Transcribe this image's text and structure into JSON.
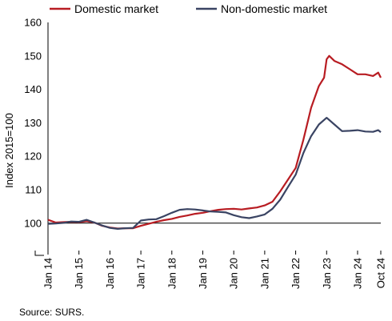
{
  "chart_data": {
    "type": "line",
    "ylabel": "Index 2015=100",
    "source": "Source: SURS.",
    "ylim": [
      95,
      160
    ],
    "yticks": [
      100,
      110,
      120,
      130,
      140,
      150,
      160
    ],
    "yticks_shown": [
      "100",
      "110",
      "120",
      "130",
      "140",
      "150",
      "160"
    ],
    "xticks": [
      "Jan 14",
      "Jan 15",
      "Jan 16",
      "Jan 17",
      "Jan 18",
      "Jan 19",
      "Jan 20",
      "Jan 21",
      "Jan 22",
      "Jan 23",
      "Jan 24",
      "Oct 24"
    ],
    "xtick_months": [
      0,
      12,
      24,
      36,
      48,
      60,
      72,
      84,
      96,
      108,
      120,
      129
    ],
    "x_range_months": [
      0,
      129
    ],
    "reference_line": 100,
    "legend_position": "top",
    "axis_break": true,
    "grid": false,
    "colors": {
      "domestic": "#b81c22",
      "non_domestic": "#3a4463",
      "reference": "#000000"
    },
    "series": [
      {
        "name": "Domestic market",
        "color": "#b81c22",
        "points": [
          [
            0,
            101
          ],
          [
            3,
            100.2
          ],
          [
            6,
            100.3
          ],
          [
            9,
            100.4
          ],
          [
            12,
            100.3
          ],
          [
            15,
            100.6
          ],
          [
            18,
            100.2
          ],
          [
            21,
            99.2
          ],
          [
            24,
            98.7
          ],
          [
            27,
            98.4
          ],
          [
            30,
            98.5
          ],
          [
            33,
            98.5
          ],
          [
            36,
            99.2
          ],
          [
            39,
            99.8
          ],
          [
            42,
            100.4
          ],
          [
            45,
            100.9
          ],
          [
            48,
            101.3
          ],
          [
            51,
            101.9
          ],
          [
            54,
            102.3
          ],
          [
            57,
            102.8
          ],
          [
            60,
            103.1
          ],
          [
            63,
            103.6
          ],
          [
            66,
            104.0
          ],
          [
            69,
            104.2
          ],
          [
            72,
            104.3
          ],
          [
            75,
            104.1
          ],
          [
            78,
            104.4
          ],
          [
            81,
            104.7
          ],
          [
            84,
            105.3
          ],
          [
            87,
            106.4
          ],
          [
            90,
            109.5
          ],
          [
            93,
            113.0
          ],
          [
            96,
            116.5
          ],
          [
            99,
            125.0
          ],
          [
            102,
            134.5
          ],
          [
            105,
            141.0
          ],
          [
            107,
            143.5
          ],
          [
            108,
            149.0
          ],
          [
            109,
            150.0
          ],
          [
            111,
            148.5
          ],
          [
            114,
            147.5
          ],
          [
            117,
            146.0
          ],
          [
            120,
            144.5
          ],
          [
            123,
            144.5
          ],
          [
            126,
            144.0
          ],
          [
            128,
            145.0
          ],
          [
            129,
            143.5
          ]
        ]
      },
      {
        "name": "Non-domestic market",
        "color": "#3a4463",
        "points": [
          [
            0,
            99.8
          ],
          [
            3,
            99.9
          ],
          [
            6,
            100.1
          ],
          [
            9,
            100.5
          ],
          [
            12,
            100.4
          ],
          [
            15,
            101.0
          ],
          [
            18,
            100.2
          ],
          [
            21,
            99.3
          ],
          [
            24,
            98.6
          ],
          [
            27,
            98.3
          ],
          [
            30,
            98.5
          ],
          [
            33,
            98.6
          ],
          [
            36,
            100.8
          ],
          [
            39,
            101.1
          ],
          [
            42,
            101.2
          ],
          [
            45,
            102.1
          ],
          [
            48,
            103.1
          ],
          [
            51,
            104.0
          ],
          [
            54,
            104.2
          ],
          [
            57,
            104.1
          ],
          [
            60,
            103.8
          ],
          [
            63,
            103.5
          ],
          [
            66,
            103.4
          ],
          [
            69,
            103.2
          ],
          [
            72,
            102.4
          ],
          [
            75,
            101.8
          ],
          [
            78,
            101.5
          ],
          [
            81,
            102.0
          ],
          [
            84,
            102.6
          ],
          [
            87,
            104.3
          ],
          [
            90,
            107.0
          ],
          [
            93,
            110.8
          ],
          [
            96,
            114.5
          ],
          [
            99,
            121.0
          ],
          [
            102,
            126.0
          ],
          [
            105,
            129.5
          ],
          [
            108,
            131.5
          ],
          [
            111,
            129.5
          ],
          [
            114,
            127.5
          ],
          [
            117,
            127.6
          ],
          [
            120,
            127.8
          ],
          [
            123,
            127.4
          ],
          [
            126,
            127.3
          ],
          [
            128,
            127.8
          ],
          [
            129,
            127.2
          ]
        ]
      }
    ]
  }
}
